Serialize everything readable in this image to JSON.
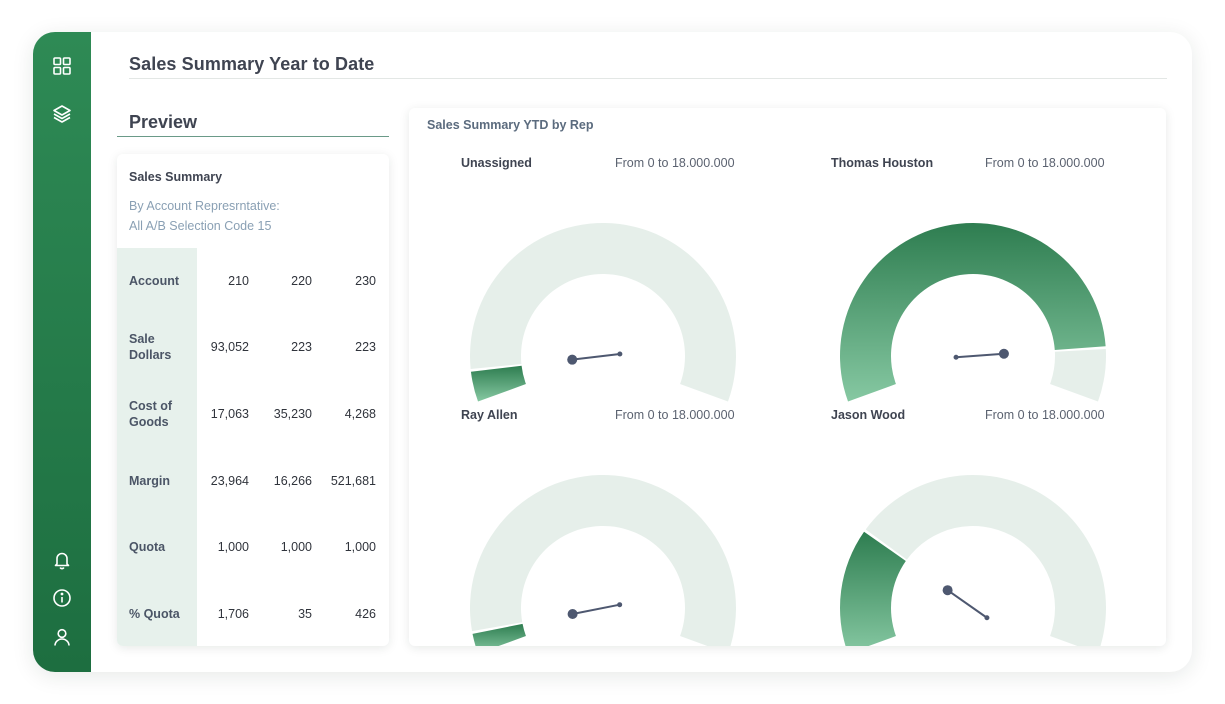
{
  "page_title": "Sales Summary Year to Date",
  "sidebar": {
    "top_icons": [
      "grid-icon",
      "layers-icon"
    ],
    "bottom_icons": [
      "bell-icon",
      "info-icon",
      "user-icon"
    ]
  },
  "preview": {
    "title": "Preview",
    "card_title": "Sales Summary",
    "subtitle_line1": "By Account Represrntative:",
    "subtitle_line2": "All A/B Selection Code 15",
    "rows": [
      {
        "label": "Account",
        "values": [
          "210",
          "220",
          "230"
        ]
      },
      {
        "label": "Sale Dollars",
        "values": [
          "93,052",
          "223",
          "223"
        ]
      },
      {
        "label": "Cost of Goods",
        "values": [
          "17,063",
          "35,230",
          "4,268"
        ]
      },
      {
        "label": "Margin",
        "values": [
          "23,964",
          "16,266",
          "521,681"
        ]
      },
      {
        "label": "Quota",
        "values": [
          "1,000",
          "1,000",
          "1,000"
        ]
      },
      {
        "label": "% Quota",
        "values": [
          "1,706",
          "35",
          "426"
        ]
      }
    ]
  },
  "gauges": {
    "title": "Sales Summary YTD by Rep",
    "items": [
      {
        "name": "Unassigned",
        "range": "From 0 to 18.000.000",
        "fill": 0.06
      },
      {
        "name": "Thomas Houston",
        "range": "From 0 to 18.000.000",
        "fill": 0.89
      },
      {
        "name": "Ray Allen",
        "range": "From 0 to 18.000.000",
        "fill": 0.04
      },
      {
        "name": "Jason Wood",
        "range": "From 0 to 18.000.000",
        "fill": 0.25
      }
    ]
  },
  "colors": {
    "sidebar": "#2e8a55",
    "track": "#e6efea",
    "fill_dark": "#2e7d50",
    "fill_light": "#86c8a2",
    "needle": "#4e5870"
  }
}
